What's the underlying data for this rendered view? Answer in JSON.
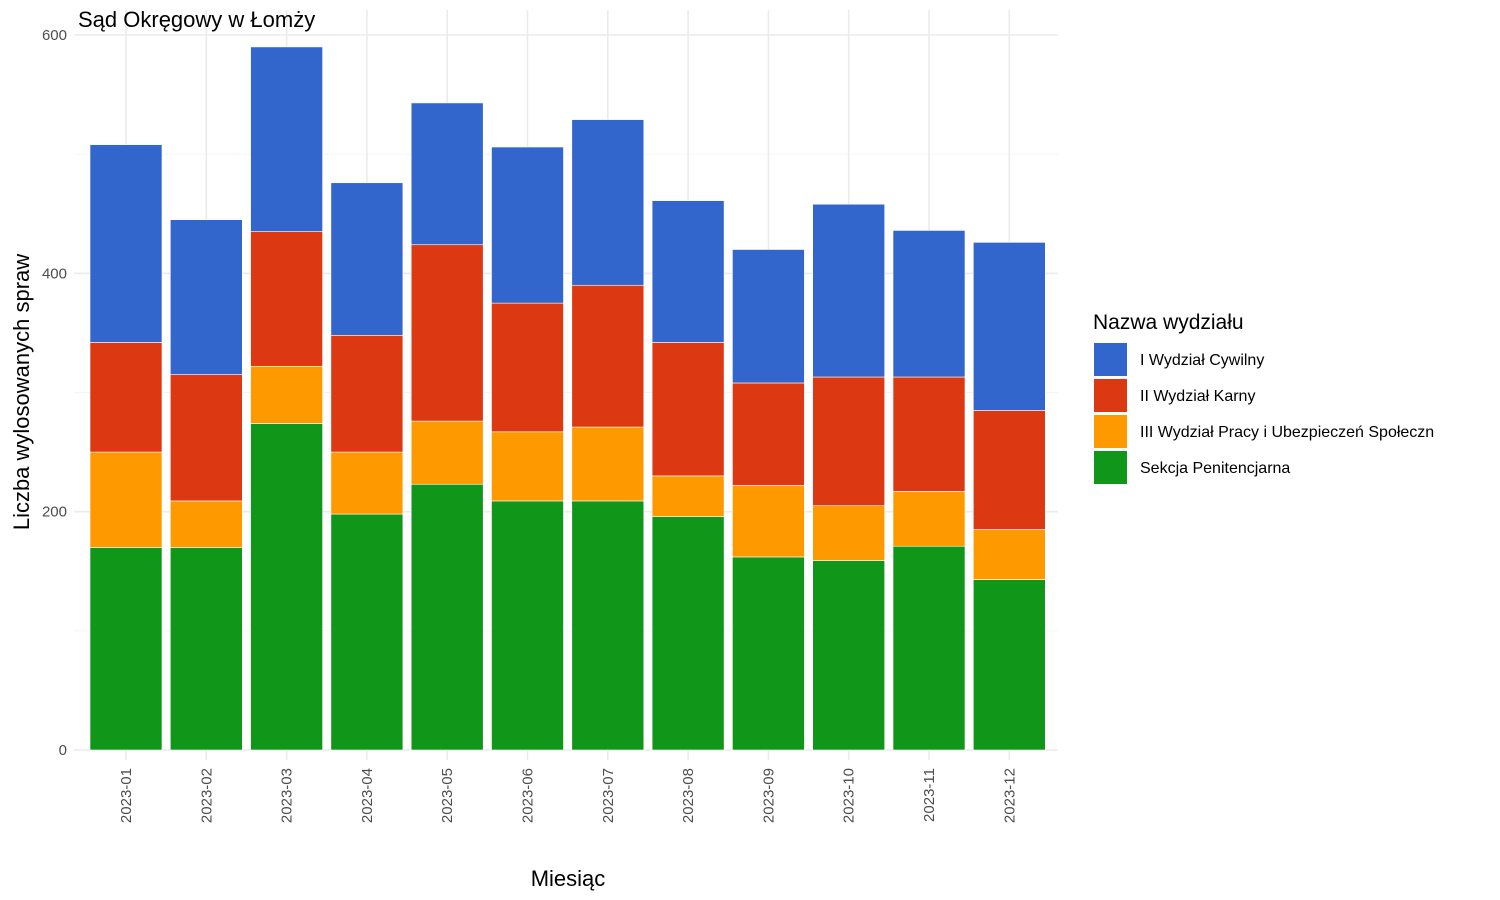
{
  "chart_data": {
    "type": "bar",
    "stacked": true,
    "title": "Sąd Okręgowy w Łomży",
    "xlabel": "Miesiąc",
    "ylabel": "Liczba wylosowanych spraw",
    "ylim": [
      0,
      600
    ],
    "yticks": [
      0,
      200,
      400,
      600
    ],
    "grid": true,
    "legend_position": "right",
    "legend_title": "Nazwa wydziału",
    "categories": [
      "2023-01",
      "2023-02",
      "2023-03",
      "2023-04",
      "2023-05",
      "2023-06",
      "2023-07",
      "2023-08",
      "2023-09",
      "2023-10",
      "2023-11",
      "2023-12"
    ],
    "series": [
      {
        "name": "Sekcja Penitencjarna",
        "color": "#109618",
        "values": [
          170,
          170,
          274,
          198,
          223,
          209,
          209,
          196,
          162,
          159,
          171,
          143
        ]
      },
      {
        "name": "III Wydział Pracy i Ubezpieczeń Społeczn",
        "color": "#ff9900",
        "values": [
          80,
          39,
          48,
          52,
          53,
          58,
          62,
          34,
          60,
          46,
          46,
          42
        ]
      },
      {
        "name": "II Wydział Karny",
        "color": "#dc3912",
        "values": [
          92,
          106,
          113,
          98,
          148,
          108,
          119,
          112,
          86,
          108,
          96,
          100
        ]
      },
      {
        "name": "I Wydział Cywilny",
        "color": "#3366cc",
        "values": [
          166,
          130,
          155,
          128,
          119,
          131,
          139,
          119,
          112,
          145,
          123,
          141
        ]
      }
    ],
    "legend_order": [
      "I Wydział Cywilny",
      "II Wydział Karny",
      "III Wydział Pracy i Ubezpieczeń Społeczn",
      "Sekcja Penitencjarna"
    ]
  }
}
